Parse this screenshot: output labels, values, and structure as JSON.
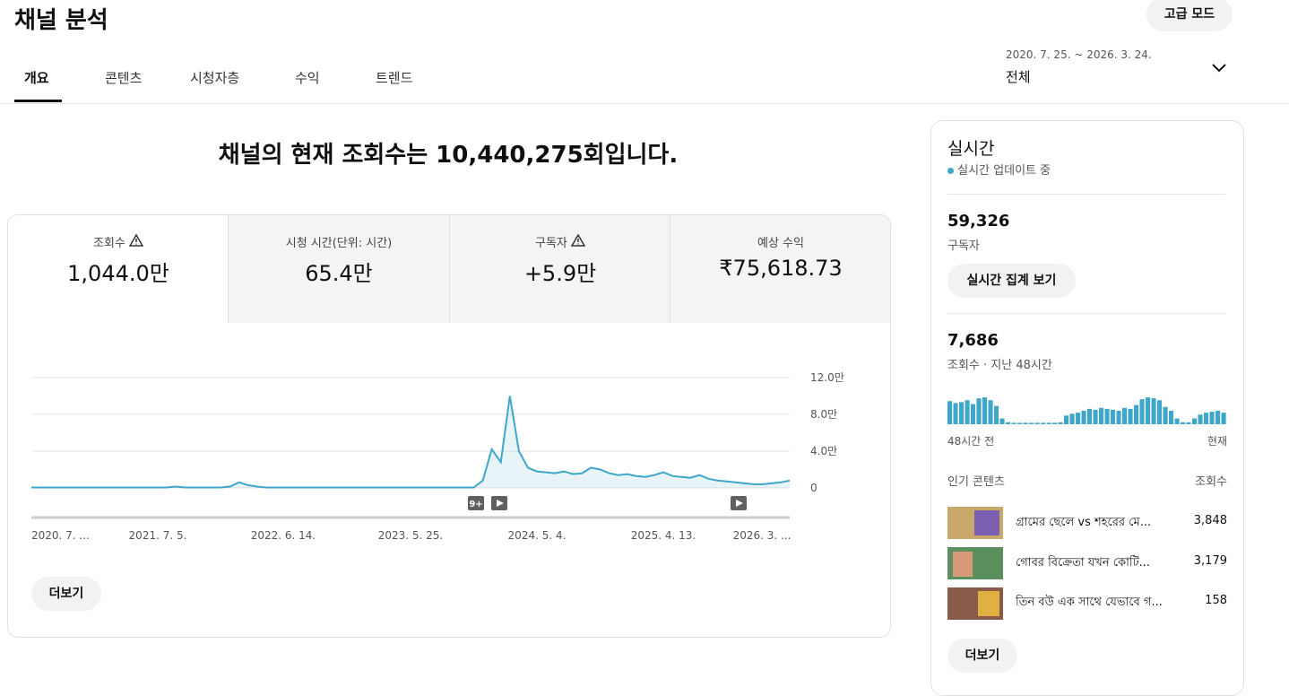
{
  "header": {
    "title": "채널 분석",
    "advanced_button": "고급 모드"
  },
  "tabs": [
    "개요",
    "콘텐츠",
    "시청자층",
    "수익",
    "트렌드"
  ],
  "date_range": {
    "range": "2020. 7. 25. ~ 2026. 3. 24.",
    "label": "전체"
  },
  "headline": "채널의 현재 조회수는 10,440,275회입니다.",
  "metrics": [
    {
      "label": "조회수",
      "value": "1,044.0만"
    },
    {
      "label": "시청 시간(단위: 시간)",
      "value": "65.4만"
    },
    {
      "label": "구독자",
      "value": "+5.9만"
    },
    {
      "label": "예상 수익",
      "value": "₹75,618.73"
    }
  ],
  "chart": {
    "type": "line",
    "color": "#3ea6c8",
    "x_labels": [
      "2020. 7. ...",
      "2021. 7. 5.",
      "2022. 6. 14.",
      "2023. 5. 25.",
      "2024. 5. 4.",
      "2025. 4. 13.",
      "2026. 3. ..."
    ],
    "ylim": [
      0,
      120000
    ],
    "yticks": [
      0,
      {
        "value": 40000,
        "label": "4.0만"
      },
      {
        "value": 80000,
        "label": "8.0만"
      },
      {
        "value": 120000,
        "label": "12.0만"
      }
    ],
    "marker_label": "9+",
    "values": [
      500,
      500,
      500,
      500,
      500,
      500,
      500,
      500,
      500,
      500,
      500,
      500,
      500,
      500,
      500,
      500,
      1500,
      500,
      500,
      500,
      500,
      500,
      1500,
      6000,
      3000,
      1500,
      500,
      500,
      500,
      500,
      500,
      500,
      500,
      500,
      500,
      500,
      500,
      500,
      500,
      500,
      500,
      500,
      500,
      500,
      500,
      500,
      500,
      500,
      500,
      500,
      8000,
      42000,
      28000,
      100000,
      40000,
      22000,
      18000,
      17000,
      16000,
      18000,
      15000,
      16000,
      22000,
      20000,
      16000,
      14000,
      15000,
      13000,
      12000,
      14000,
      17000,
      13000,
      12000,
      11000,
      14000,
      10000,
      8000,
      7000,
      6000,
      5000,
      4000,
      4000,
      5000,
      6000,
      8000
    ]
  },
  "more_button": "더보기",
  "realtime": {
    "title": "실시간",
    "status": "실시간 업데이트 중",
    "subscribers": "59,326",
    "subscribers_label": "구독자",
    "button": "실시간 집계 보기",
    "views": "7,686",
    "views_label": "조회수 · 지난 48시간",
    "bars_color": "#3ea6c8",
    "bars": [
      240,
      220,
      230,
      250,
      210,
      270,
      280,
      250,
      190,
      60,
      20,
      15,
      15,
      15,
      15,
      15,
      15,
      15,
      15,
      20,
      90,
      110,
      120,
      140,
      160,
      150,
      170,
      160,
      150,
      140,
      170,
      160,
      200,
      260,
      280,
      270,
      250,
      180,
      140,
      60,
      20,
      20,
      60,
      100,
      120,
      130,
      140,
      120
    ],
    "bars_start": "48시간 전",
    "bars_end": "현재",
    "popular_header": "인기 콘텐츠",
    "popular_views_header": "조회수",
    "popular": [
      {
        "title": "গ্রামের ছেলে vs শহরের মে...",
        "views": "3,848"
      },
      {
        "title": "গোবর বিক্রেতা যখন কোটি...",
        "views": "3,179"
      },
      {
        "title": "তিন বউ এক সাথে যেভাবে গ...",
        "views": "158"
      }
    ],
    "more_button": "더보기"
  }
}
